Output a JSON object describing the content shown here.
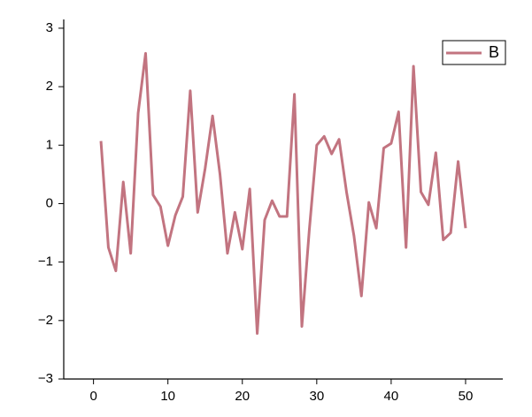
{
  "chart_data": {
    "type": "line",
    "x": [
      1,
      2,
      3,
      4,
      5,
      6,
      7,
      8,
      9,
      10,
      11,
      12,
      13,
      14,
      15,
      16,
      17,
      18,
      19,
      20,
      21,
      22,
      23,
      24,
      25,
      26,
      27,
      28,
      29,
      30,
      31,
      32,
      33,
      34,
      35,
      36,
      37,
      38,
      39,
      40,
      41,
      42,
      43,
      44,
      45,
      46,
      47,
      48,
      49,
      50
    ],
    "series": [
      {
        "name": "B",
        "color": "#c27480",
        "values": [
          1.07,
          -0.75,
          -1.15,
          0.37,
          -0.85,
          1.55,
          2.57,
          0.15,
          -0.05,
          -0.72,
          -0.2,
          0.12,
          1.93,
          -0.15,
          0.6,
          1.5,
          0.5,
          -0.85,
          -0.15,
          -0.78,
          0.25,
          -2.22,
          -0.28,
          0.05,
          -0.22,
          -0.22,
          1.87,
          -2.1,
          -0.45,
          1.0,
          1.15,
          0.85,
          1.1,
          0.2,
          -0.55,
          -1.58,
          0.02,
          -0.42,
          0.95,
          1.03,
          1.57,
          -0.75,
          2.35,
          0.2,
          -0.02,
          0.87,
          -0.62,
          -0.5,
          0.72,
          -0.42
        ]
      }
    ],
    "xlim": [
      -4,
      55
    ],
    "xticks": [
      0,
      10,
      20,
      30,
      40,
      50
    ],
    "ylim": [
      -3,
      3.15
    ],
    "yticks": [
      {
        "value": -3,
        "label": "−3"
      },
      {
        "value": -2,
        "label": "−2"
      },
      {
        "value": -1,
        "label": "−1"
      },
      0,
      1,
      2,
      3
    ],
    "legend": "upper right"
  }
}
